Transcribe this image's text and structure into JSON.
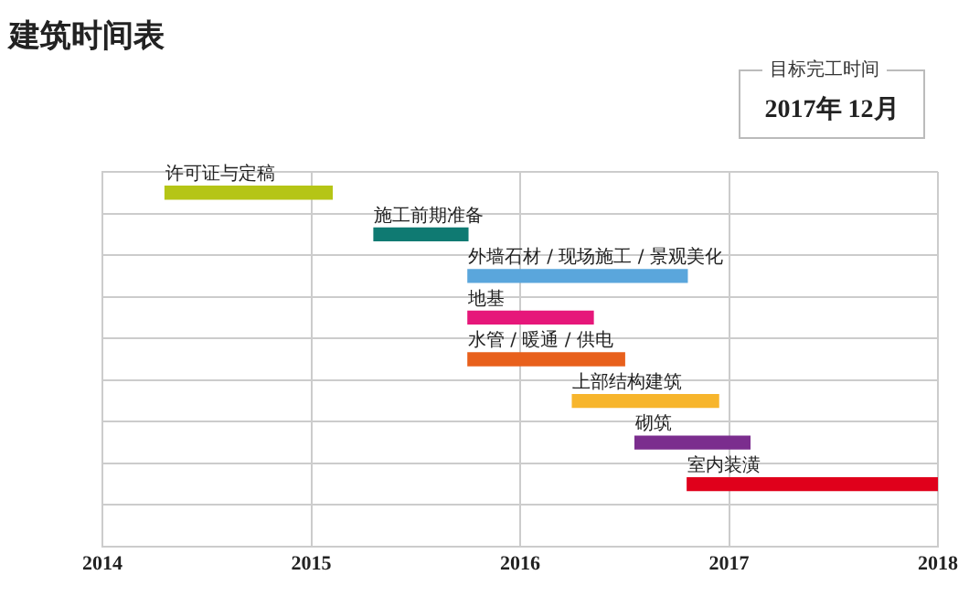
{
  "chart_data": {
    "type": "bar",
    "orientation": "horizontal",
    "title": "建筑时间表",
    "annotations": [
      "目标完工时间",
      "2017年 12月"
    ],
    "categories": [
      "许可证与定稿",
      "施工前期准备",
      "外墙石材 / 现场施工 / 景观美化",
      "地基",
      "水管 / 暖通 / 供电",
      "上部结构建筑",
      "砌筑",
      "室内装潢"
    ],
    "base": [
      2014.3,
      2015.3,
      2015.75,
      2015.75,
      2015.75,
      2016.25,
      2016.55,
      2016.8
    ],
    "values": [
      0.8,
      0.45,
      1.05,
      0.6,
      0.75,
      0.7,
      0.55,
      1.2
    ],
    "colors": [
      "#b5c516",
      "#0f7a72",
      "#5aa6dc",
      "#e6177a",
      "#e8601c",
      "#f7b52c",
      "#7b2d8e",
      "#e0001b"
    ],
    "xlim": [
      2014,
      2018
    ],
    "xticks": [
      2014,
      2015,
      2016,
      2017,
      2018
    ],
    "grid": true
  }
}
